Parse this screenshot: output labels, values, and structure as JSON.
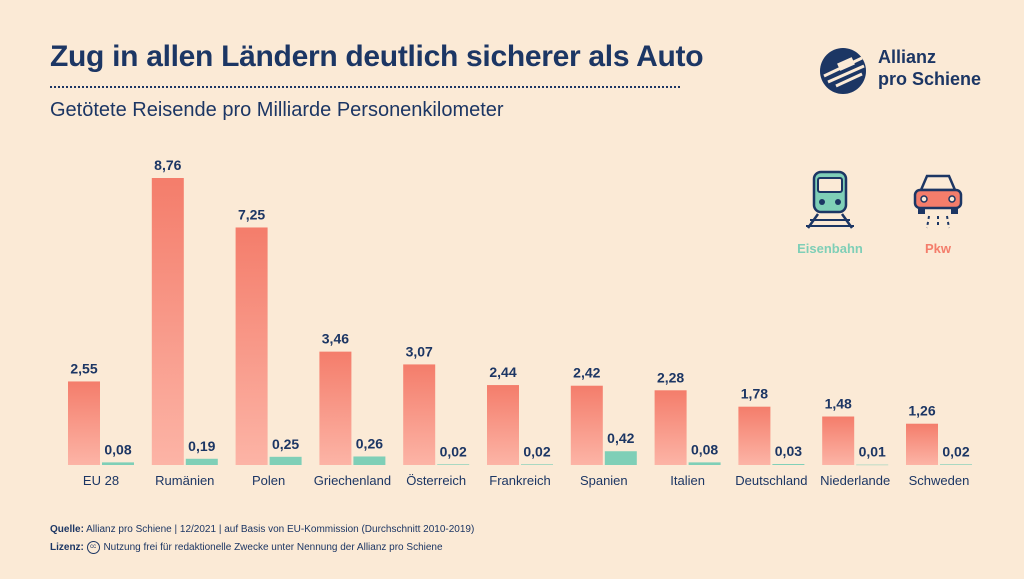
{
  "header": {
    "title": "Zug in allen Ländern deutlich sicherer als Auto",
    "subtitle": "Getötete Reisende pro Milliarde Personenkilometer"
  },
  "logo": {
    "line1": "Allianz",
    "line2": "pro Schiene"
  },
  "legend": {
    "rail_label": "Eisenbahn",
    "car_label": "Pkw",
    "rail_icon": "train-icon",
    "car_icon": "car-icon"
  },
  "colors": {
    "car": "#f47d6b",
    "rail": "#7fcfb7",
    "text": "#1c3664",
    "background": "#fbead6"
  },
  "chart_data": {
    "type": "bar",
    "categories": [
      "EU 28",
      "Rumänien",
      "Polen",
      "Griechenland",
      "Österreich",
      "Frankreich",
      "Spanien",
      "Italien",
      "Deutschland",
      "Niederlande",
      "Schweden"
    ],
    "series": [
      {
        "name": "Pkw",
        "values": [
          2.55,
          8.76,
          7.25,
          3.46,
          3.07,
          2.44,
          2.42,
          2.28,
          1.78,
          1.48,
          1.26
        ]
      },
      {
        "name": "Eisenbahn",
        "values": [
          0.08,
          0.19,
          0.25,
          0.26,
          0.02,
          0.02,
          0.42,
          0.08,
          0.03,
          0.01,
          0.02
        ]
      }
    ],
    "value_labels": {
      "Pkw": [
        "2,55",
        "8,76",
        "7,25",
        "3,46",
        "3,07",
        "2,44",
        "2,42",
        "2,28",
        "1,78",
        "1,48",
        "1,26"
      ],
      "Eisenbahn": [
        "0,08",
        "0,19",
        "0,25",
        "0,26",
        "0,02",
        "0,02",
        "0,42",
        "0,08",
        "0,03",
        "0,01",
        "0,02"
      ]
    },
    "title": "Zug in allen Ländern deutlich sicherer als Auto",
    "subtitle": "Getötete Reisende pro Milliarde Personenkilometer",
    "xlabel": "",
    "ylabel": "",
    "ylim": [
      0,
      8.76
    ],
    "grid": false,
    "legend_position": "top-right"
  },
  "footer": {
    "source_label": "Quelle:",
    "source_text": "Allianz pro Schiene | 12/2021 | auf Basis von EU-Kommission (Durchschnitt 2010-2019)",
    "license_label": "Lizenz:",
    "license_badge": "cc",
    "license_text": "Nutzung frei für redaktionelle Zwecke unter Nennung der Allianz pro Schiene"
  }
}
